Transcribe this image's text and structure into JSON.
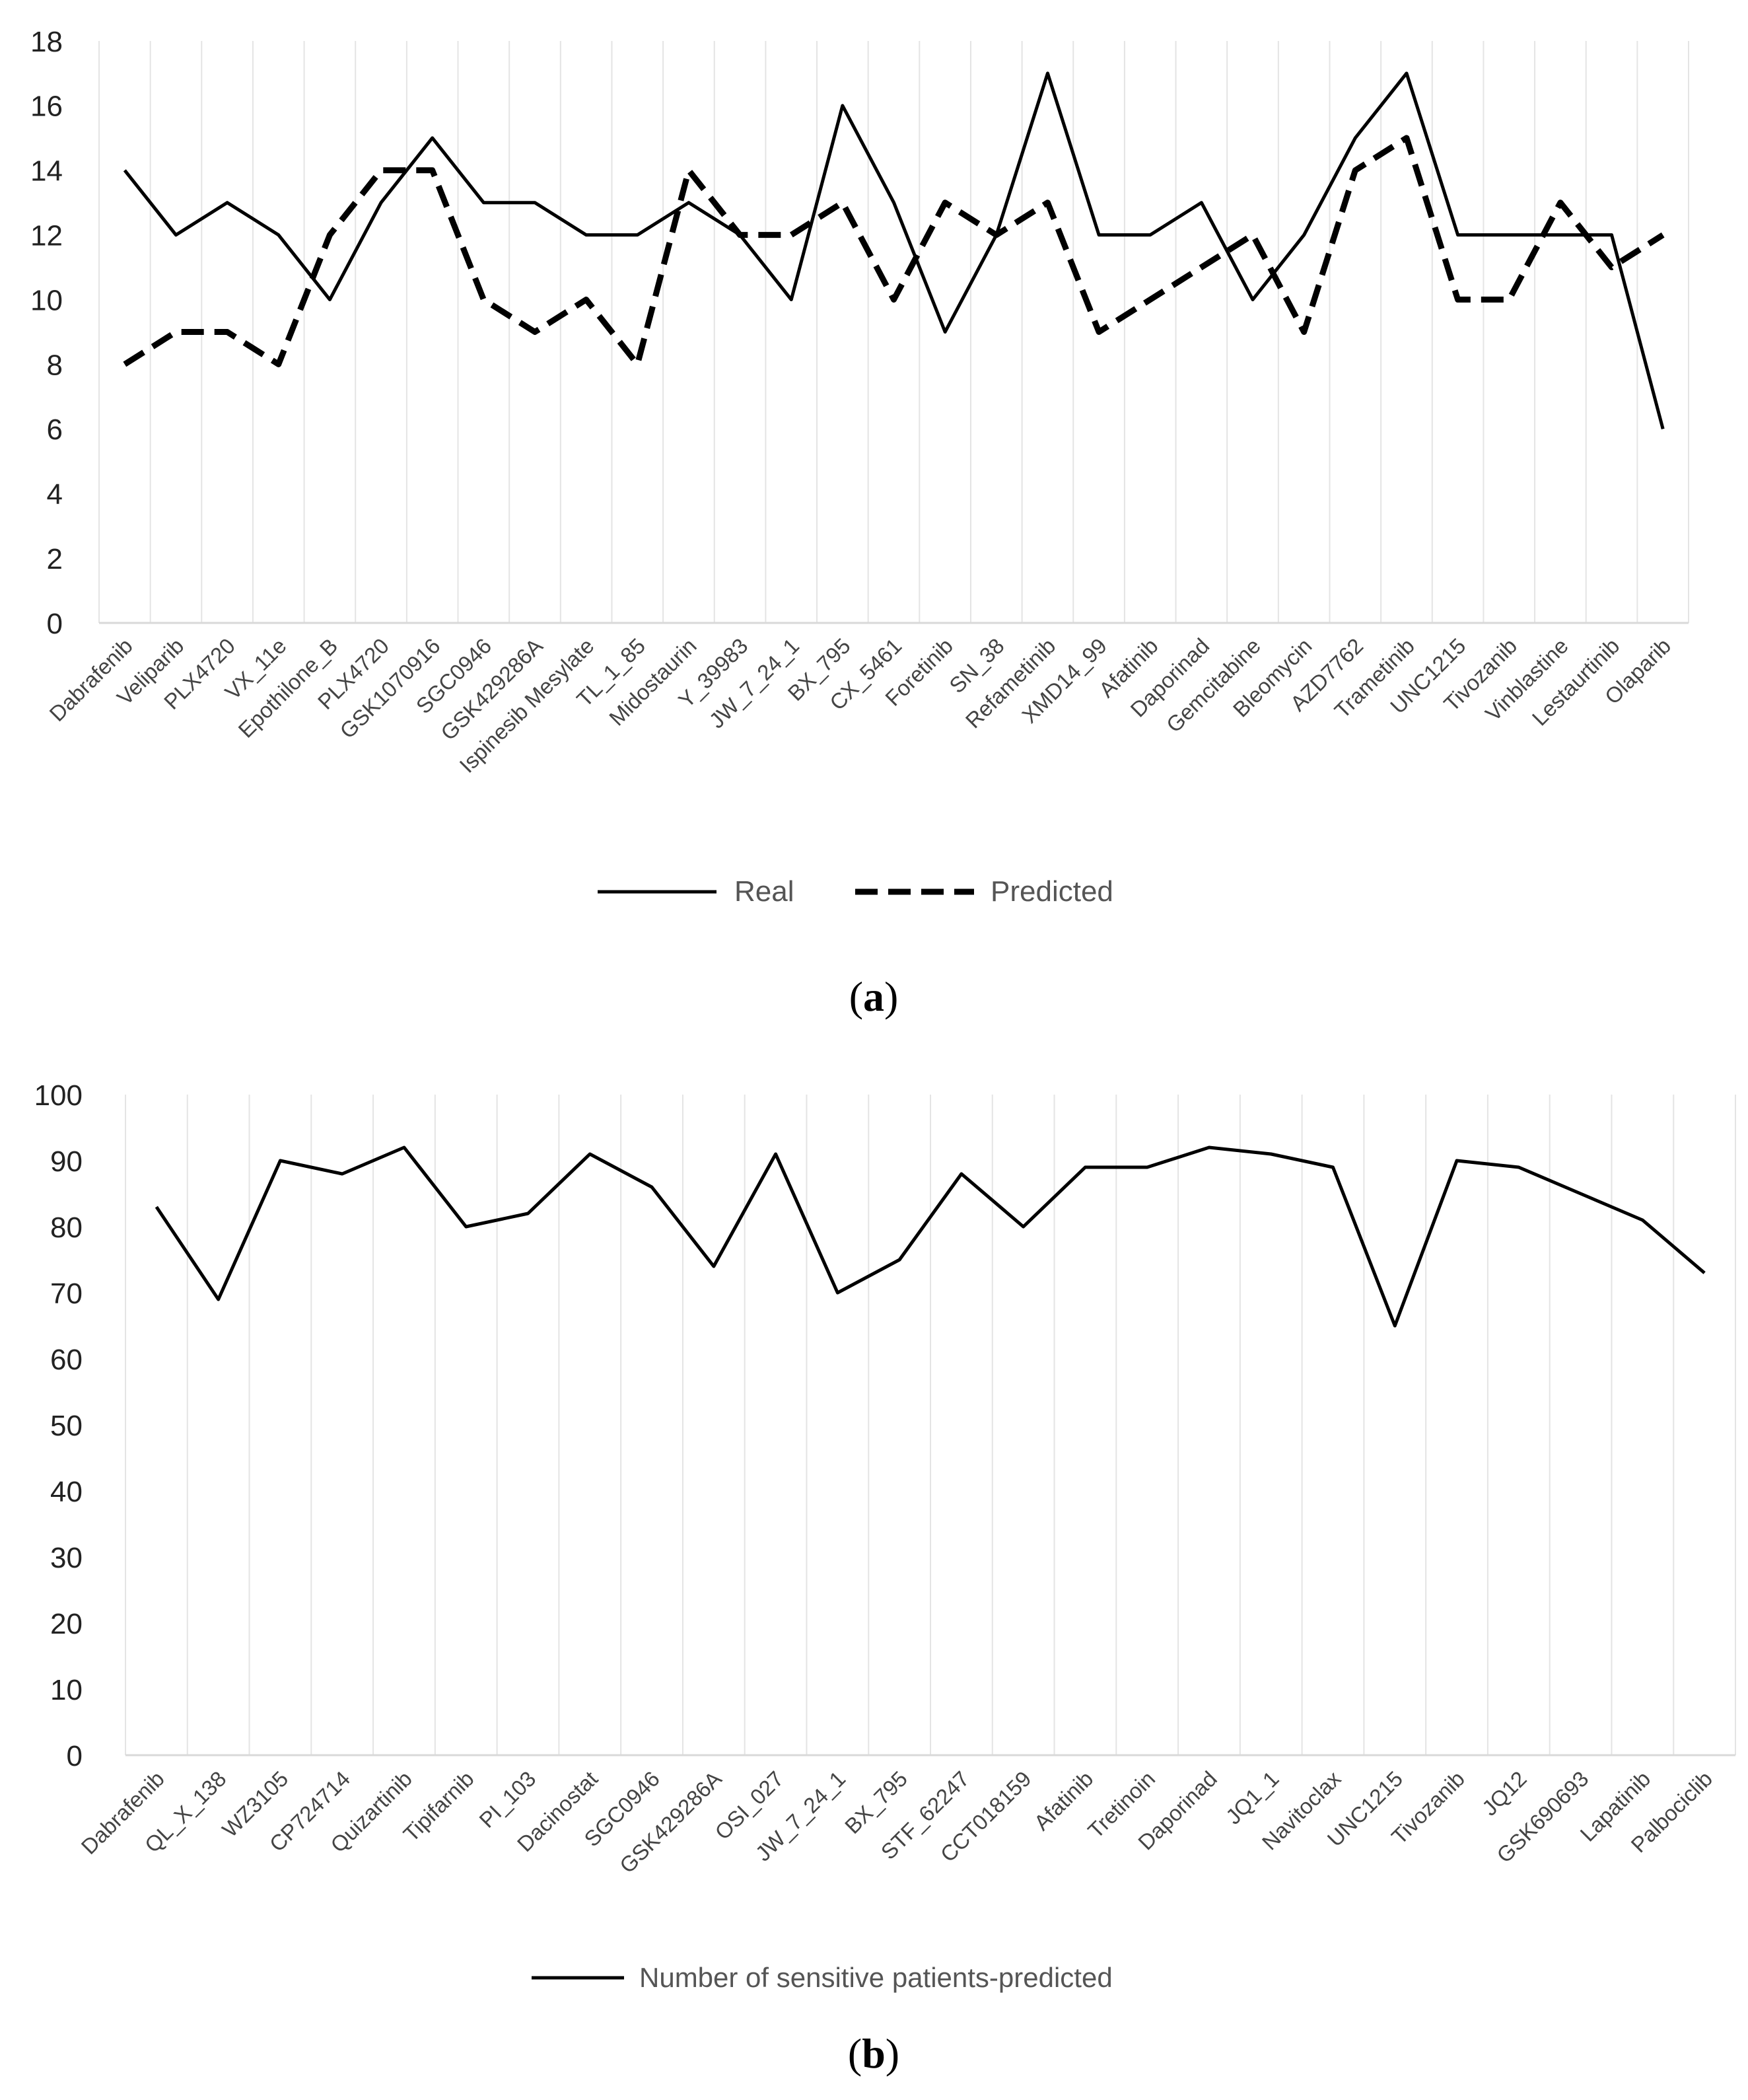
{
  "chart_data": [
    {
      "type": "line",
      "caption": "a",
      "categories": [
        "Dabrafenib",
        "Veliparib",
        "PLX4720",
        "VX_11e",
        "Epothilone_B",
        "PLX4720",
        "GSK1070916",
        "SGC0946",
        "GSK429286A",
        "Ispinesib Mesylate",
        "TL_1_85",
        "Midostaurin",
        "Y_39983",
        "JW_7_24_1",
        "BX_795",
        "CX_5461",
        "Foretinib",
        "SN_38",
        "Refametinib",
        "XMD14_99",
        "Afatinib",
        "Daporinad",
        "Gemcitabine",
        "Bleomycin",
        "AZD7762",
        "Trametinib",
        "UNC1215",
        "Tivozanib",
        "Vinblastine",
        "Lestaurtinib",
        "Olaparib"
      ],
      "series": [
        {
          "name": "Real",
          "style": "solid",
          "values": [
            14,
            12,
            13,
            12,
            10,
            13,
            15,
            13,
            13,
            12,
            12,
            13,
            12,
            10,
            16,
            13,
            9,
            12,
            17,
            12,
            12,
            13,
            10,
            12,
            15,
            17,
            12,
            12,
            12,
            12,
            6
          ]
        },
        {
          "name": "Predicted",
          "style": "dashed",
          "values": [
            8,
            9,
            9,
            8,
            12,
            14,
            14,
            10,
            9,
            10,
            8,
            14,
            12,
            12,
            13,
            10,
            13,
            12,
            13,
            9,
            10,
            11,
            12,
            9,
            14,
            15,
            10,
            10,
            13,
            11,
            12
          ]
        }
      ],
      "yticks": [
        "0",
        "2",
        "4",
        "6",
        "8",
        "10",
        "12",
        "14",
        "16",
        "18"
      ],
      "ylim": [
        0,
        18
      ],
      "ystep": 2,
      "grid": "vertical",
      "legend": "bottom-center",
      "title": "",
      "xlabel": "",
      "ylabel": ""
    },
    {
      "type": "line",
      "caption": "b",
      "categories": [
        "Dabrafenib",
        "QL_X_138",
        "WZ3105",
        "CP724714",
        "Quizartinib",
        "Tipifarnib",
        "PI_103",
        "Dacinostat",
        "SGC0946",
        "GSK429286A",
        "OSI_027",
        "JW_7_24_1",
        "BX_795",
        "STF_62247",
        "CCT018159",
        "Afatinib",
        "Tretinoin",
        "Daporinad",
        "JQ1_1",
        "Navitoclax",
        "UNC1215",
        "Tivozanib",
        "JQ12",
        "GSK690693",
        "Lapatinib",
        "Palbociclib"
      ],
      "series": [
        {
          "name": "Number of sensitive patients-predicted",
          "style": "solid",
          "values": [
            83,
            69,
            90,
            88,
            92,
            80,
            82,
            91,
            86,
            74,
            91,
            70,
            75,
            88,
            80,
            89,
            89,
            92,
            91,
            89,
            65,
            90,
            89,
            85,
            81,
            73
          ]
        }
      ],
      "yticks": [
        "0",
        "10",
        "20",
        "30",
        "40",
        "50",
        "60",
        "70",
        "80",
        "90",
        "100"
      ],
      "ylim": [
        0,
        100
      ],
      "ystep": 10,
      "grid": "vertical",
      "legend": "bottom-center",
      "title": "",
      "xlabel": "",
      "ylabel": ""
    }
  ],
  "captions": {
    "a": "a",
    "b": "b"
  },
  "colors": {
    "line": "#000000",
    "grid": "#e4e4e4",
    "axis": "#d9d9d9"
  }
}
